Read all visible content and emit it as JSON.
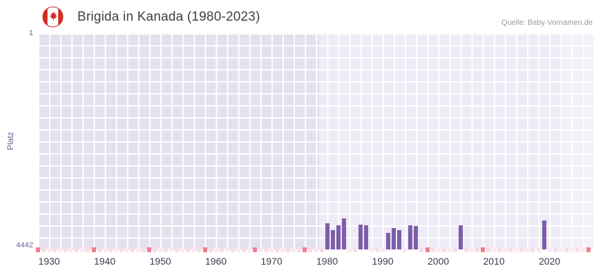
{
  "chart_data": {
    "type": "bar",
    "title": "Brigida in Kanada (1980-2023)",
    "source": "Quelle: Baby-Vornamen.de",
    "ylabel": "Platz",
    "flag_icon": "canada-flag",
    "y_axis": {
      "top_label": "1",
      "bottom_label": "4442",
      "min": 1,
      "max": 4442,
      "inverted": true
    },
    "x_axis": {
      "min": 1928,
      "max": 2028,
      "ticks": [
        1930,
        1940,
        1950,
        1960,
        1970,
        1980,
        1990,
        2000,
        2010,
        2020
      ]
    },
    "bars": [
      {
        "year": 1980,
        "rank": 3900
      },
      {
        "year": 1981,
        "rank": 4050
      },
      {
        "year": 1982,
        "rank": 3950
      },
      {
        "year": 1983,
        "rank": 3800
      },
      {
        "year": 1986,
        "rank": 3930
      },
      {
        "year": 1987,
        "rank": 3950
      },
      {
        "year": 1991,
        "rank": 4100
      },
      {
        "year": 1992,
        "rank": 4000
      },
      {
        "year": 1993,
        "rank": 4050
      },
      {
        "year": 1995,
        "rank": 3950
      },
      {
        "year": 1996,
        "rank": 3960
      },
      {
        "year": 2004,
        "rank": 3950
      },
      {
        "year": 2019,
        "rank": 3850
      }
    ],
    "unranked_range": [
      1928,
      2027
    ],
    "unranked_red_years": [
      1928,
      1938,
      1948,
      1958,
      1967,
      1976,
      1998,
      2008,
      2027
    ],
    "bands": [
      {
        "from": 1978.5,
        "to": 2028,
        "color": "#ECEBF6"
      },
      {
        "from": 2022,
        "to": 2028,
        "color": "#F2F1FA"
      }
    ],
    "colors": {
      "bar": "#7E5DA9",
      "plot_bg": "#E3E1EE",
      "grid": "#FFFFFF",
      "marker_red": "#EF7E8D",
      "marker_light_a": "#F8DCE6",
      "marker_light_b": "#FBEAF0",
      "title": "#3E3E46",
      "source": "#9B9B9B",
      "y_axis_text": "#6C6199",
      "x_axis_text": "#3D3A4E",
      "flag_red": "#D52B1E",
      "flag_white": "#FFFFFF"
    }
  }
}
